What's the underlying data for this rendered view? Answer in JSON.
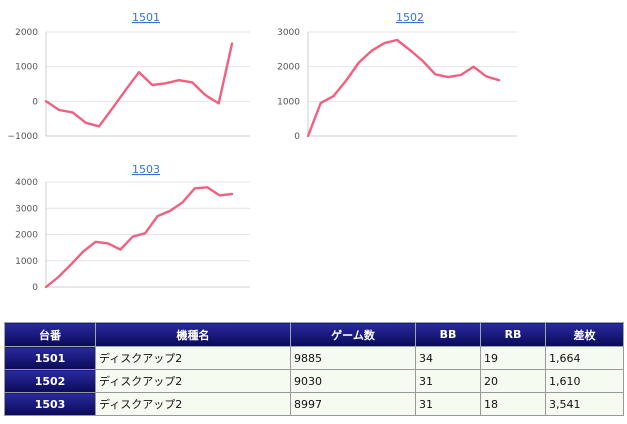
{
  "charts": [
    {
      "title": "1501",
      "chart_data": {
        "type": "line",
        "title": "1501",
        "ylim": [
          -1000,
          2000
        ],
        "yticks": [
          "2000",
          "1000",
          "0",
          "−1000"
        ],
        "ytick_values": [
          2000,
          1000,
          0,
          -1000
        ],
        "grid": true,
        "series": [
          {
            "values": [
              0,
              -250,
              -320,
              -620,
              -720,
              -200,
              330,
              840,
              470,
              520,
              610,
              550,
              180,
              -60,
              1664
            ]
          }
        ],
        "color": "#f0607f"
      }
    },
    {
      "title": "1502",
      "chart_data": {
        "type": "line",
        "title": "1502",
        "ylim": [
          0,
          3000
        ],
        "yticks": [
          "3000",
          "2000",
          "1000",
          "0"
        ],
        "ytick_values": [
          3000,
          2000,
          1000,
          0
        ],
        "grid": true,
        "series": [
          {
            "values": [
              0,
              950,
              1150,
              1600,
              2120,
              2460,
              2680,
              2770,
              2480,
              2170,
              1780,
              1700,
              1760,
              2000,
              1720,
              1610
            ]
          }
        ],
        "color": "#f0607f"
      }
    },
    {
      "title": "1503",
      "chart_data": {
        "type": "line",
        "title": "1503",
        "ylim": [
          0,
          4000
        ],
        "yticks": [
          "4000",
          "3000",
          "2000",
          "1000",
          "0"
        ],
        "ytick_values": [
          4000,
          3000,
          2000,
          1000,
          0
        ],
        "grid": true,
        "series": [
          {
            "values": [
              0,
              380,
              850,
              1350,
              1720,
              1660,
              1430,
              1920,
              2050,
              2700,
              2900,
              3220,
              3760,
              3800,
              3490,
              3541
            ]
          }
        ],
        "color": "#f0607f"
      }
    }
  ],
  "table": {
    "headers": [
      "台番",
      "機種名",
      "ゲーム数",
      "BB",
      "RB",
      "差枚"
    ],
    "rows": [
      [
        "1501",
        "ディスクアップ2",
        "9885",
        "34",
        "19",
        "1,664"
      ],
      [
        "1502",
        "ディスクアップ2",
        "9030",
        "31",
        "20",
        "1,610"
      ],
      [
        "1503",
        "ディスクアップ2",
        "8997",
        "31",
        "18",
        "3,541"
      ]
    ]
  },
  "colors": {
    "line": "#f0607f",
    "header_bg": "#0a0a58",
    "link": "#3a6fd8"
  }
}
